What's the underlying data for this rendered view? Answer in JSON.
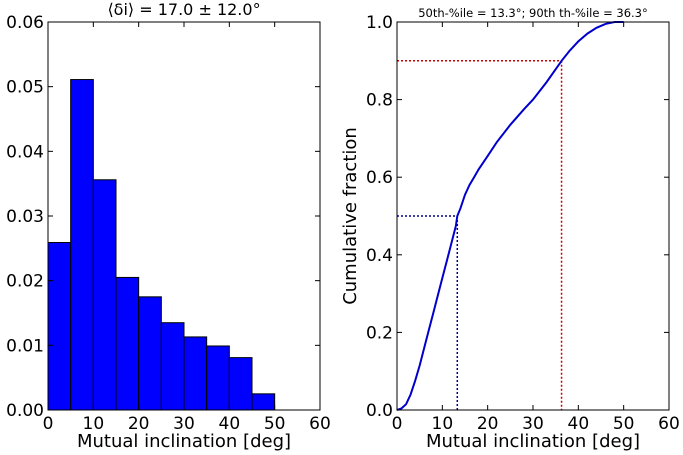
{
  "chart_data": [
    {
      "type": "bar",
      "title": "⟨δi⟩ = 17.0 ± 12.0°",
      "xlabel": "Mutual inclination [deg]",
      "ylabel": "",
      "xlim": [
        0,
        60
      ],
      "ylim": [
        0,
        0.06
      ],
      "xticks": [
        "0",
        "10",
        "20",
        "30",
        "40",
        "50",
        "60"
      ],
      "yticks": [
        "0.00",
        "0.01",
        "0.02",
        "0.03",
        "0.04",
        "0.05",
        "0.06"
      ],
      "bin_edges": [
        0,
        5,
        10,
        15,
        20,
        25,
        30,
        35,
        40,
        45,
        50
      ],
      "values": [
        0.0259,
        0.0511,
        0.0356,
        0.0205,
        0.0175,
        0.0135,
        0.0113,
        0.0099,
        0.0081,
        0.0025
      ],
      "bar_color": "#0000ff",
      "grid": false
    },
    {
      "type": "line",
      "title": "50th-%ile = 13.3°; 90th th-%ile = 36.3°",
      "xlabel": "Mutual inclination [deg]",
      "ylabel": "Cumulative fraction",
      "xlim": [
        0,
        60
      ],
      "ylim": [
        0,
        1.0
      ],
      "xticks": [
        "0",
        "10",
        "20",
        "30",
        "40",
        "50",
        "60"
      ],
      "yticks": [
        "0.0",
        "0.2",
        "0.4",
        "0.6",
        "0.8",
        "1.0"
      ],
      "series": [
        {
          "x": [
            0,
            1,
            2,
            3,
            4,
            5,
            6,
            7,
            8,
            9,
            10,
            11,
            12,
            13,
            13.3,
            14,
            15,
            16,
            17,
            18,
            20,
            22,
            25,
            28,
            30,
            33,
            36.3,
            38,
            40,
            42,
            44,
            46,
            48,
            50
          ],
          "y": [
            0,
            0.004,
            0.015,
            0.04,
            0.075,
            0.115,
            0.16,
            0.205,
            0.25,
            0.295,
            0.34,
            0.385,
            0.43,
            0.475,
            0.5,
            0.52,
            0.555,
            0.58,
            0.6,
            0.62,
            0.655,
            0.69,
            0.735,
            0.775,
            0.8,
            0.845,
            0.9,
            0.925,
            0.95,
            0.97,
            0.985,
            0.995,
            1.0,
            1.0
          ],
          "color": "#0000cc"
        }
      ],
      "markers": [
        {
          "x": 13.3,
          "y": 0.5,
          "color": "#00008b"
        },
        {
          "x": 36.3,
          "y": 0.9,
          "color": "#cc0000"
        }
      ],
      "grid": false
    }
  ]
}
